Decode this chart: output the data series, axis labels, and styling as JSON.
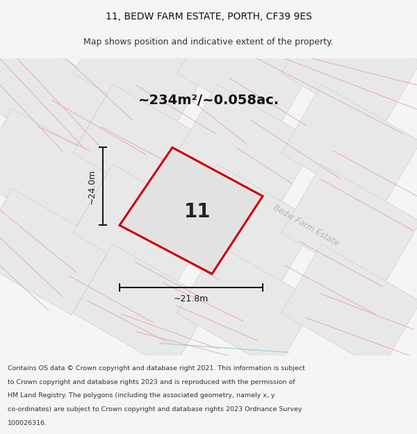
{
  "title_line1": "11, BEDW FARM ESTATE, PORTH, CF39 9ES",
  "title_line2": "Map shows position and indicative extent of the property.",
  "area_label": "~234m²/~0.058ac.",
  "plot_number": "11",
  "dim_width": "~21.8m",
  "dim_height": "~24.0m",
  "street_label": "Bedw Farm Estate",
  "footer_lines": [
    "Contains OS data © Crown copyright and database right 2021. This information is subject",
    "to Crown copyright and database rights 2023 and is reproduced with the permission of",
    "HM Land Registry. The polygons (including the associated geometry, namely x, y",
    "co-ordinates) are subject to Crown copyright and database rights 2023 Ordnance Survey",
    "100026316."
  ],
  "bg_color": "#f5f5f5",
  "map_bg": "#eeecec",
  "plot_fill": "#e2e2e2",
  "plot_border": "#cc0000",
  "road_color": "#e8a0a0",
  "block_fill": "#e8e8e8",
  "block_edge": "#d0d0d0",
  "dim_line_color": "#1a1a1a",
  "footer_bg": "#ffffff",
  "title_bg": "#ffffff"
}
